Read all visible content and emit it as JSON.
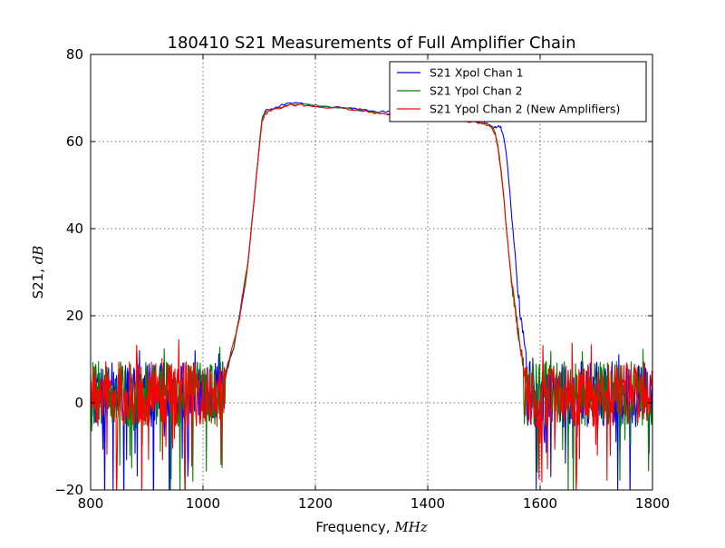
{
  "chart_data": {
    "type": "line",
    "title": "180410 S21 Measurements of Full Amplifier Chain",
    "xlabel": "Frequency, ",
    "xlabel_unit": "MHz",
    "ylabel": "S21, ",
    "ylabel_unit": "dB",
    "xlim": [
      800,
      1800
    ],
    "ylim": [
      -20,
      80
    ],
    "xticks": [
      800,
      1000,
      1200,
      1400,
      1600,
      1800
    ],
    "yticks": [
      -20,
      0,
      20,
      40,
      60,
      80
    ],
    "grid": true,
    "legend_position": "top-right",
    "noise_floor_db": 2,
    "series": [
      {
        "name": "S21 Xpol Chan 1",
        "color": "#0000ff",
        "x": [
          1040,
          1060,
          1080,
          1095,
          1105,
          1110,
          1120,
          1140,
          1160,
          1180,
          1200,
          1240,
          1280,
          1300,
          1320,
          1340,
          1360,
          1380,
          1400,
          1420,
          1440,
          1460,
          1480,
          1500,
          1510,
          1520,
          1525,
          1530,
          1535,
          1540,
          1545,
          1550,
          1555,
          1560,
          1565,
          1570,
          1575
        ],
        "y": [
          6,
          16,
          32,
          52,
          65,
          67,
          67.5,
          68.3,
          68.8,
          68.6,
          68.3,
          67.9,
          67.4,
          66.8,
          66.9,
          67,
          67.1,
          66.6,
          66.2,
          65.9,
          65.6,
          65.2,
          64.8,
          64.4,
          63.8,
          63.3,
          63.5,
          63.2,
          61,
          57,
          50,
          42,
          35,
          27,
          20,
          15,
          10
        ]
      },
      {
        "name": "S21 Ypol Chan 2",
        "color": "#008000",
        "x": [
          1040,
          1060,
          1080,
          1095,
          1105,
          1110,
          1120,
          1140,
          1160,
          1180,
          1200,
          1240,
          1280,
          1300,
          1320,
          1340,
          1360,
          1380,
          1400,
          1420,
          1440,
          1460,
          1480,
          1500,
          1510,
          1515,
          1520,
          1525,
          1530,
          1535,
          1540,
          1545,
          1550,
          1555,
          1560,
          1565,
          1570
        ],
        "y": [
          6,
          16,
          32,
          52,
          65,
          66.7,
          67.2,
          68.1,
          68.6,
          68.4,
          68.2,
          67.8,
          67.2,
          66.6,
          66.4,
          66.3,
          66.3,
          66.2,
          66,
          65.7,
          65.3,
          64.9,
          64.6,
          64.2,
          63.7,
          63.2,
          62,
          59,
          54,
          48,
          40,
          33,
          27,
          22,
          17,
          13,
          9
        ]
      },
      {
        "name": "S21 Ypol Chan 2 (New Amplifiers)",
        "color": "#ff0000",
        "x": [
          1040,
          1060,
          1080,
          1095,
          1105,
          1110,
          1120,
          1140,
          1160,
          1180,
          1200,
          1240,
          1280,
          1300,
          1320,
          1340,
          1360,
          1380,
          1400,
          1420,
          1440,
          1460,
          1480,
          1500,
          1510,
          1515,
          1520,
          1525,
          1530,
          1535,
          1540,
          1545,
          1550,
          1555,
          1560,
          1565,
          1570
        ],
        "y": [
          6,
          16,
          32,
          52,
          64.5,
          66.3,
          67,
          67.9,
          68.5,
          68.3,
          68.1,
          67.8,
          67.3,
          66.6,
          66.4,
          66.3,
          66.2,
          66.1,
          65.9,
          65.6,
          65.2,
          64.8,
          64.5,
          64.1,
          63.6,
          63,
          61.5,
          58.5,
          53.5,
          47.5,
          40,
          33,
          27,
          22,
          17,
          13,
          9
        ]
      }
    ]
  }
}
